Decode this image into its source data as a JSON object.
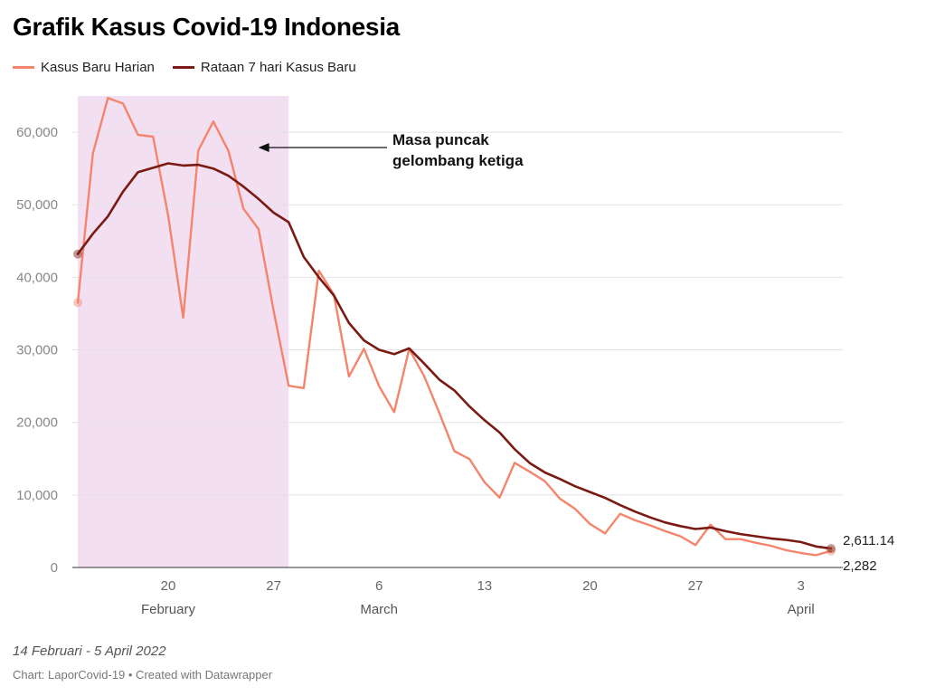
{
  "title": "Grafik Kasus Covid-19 Indonesia",
  "legend": [
    {
      "label": "Kasus Baru Harian",
      "color": "#f4846c"
    },
    {
      "label": "Rataan 7 hari Kasus Baru",
      "color": "#7a1a12"
    }
  ],
  "footer": {
    "note": "14 Februari - 5 April 2022",
    "credit": "Chart: LaporCovid-19 • Created with Datawrapper"
  },
  "chart_data": {
    "type": "line",
    "x_start": "2022-02-14",
    "x_end": "2022-04-05",
    "ylim": [
      0,
      65000
    ],
    "yticks": [
      {
        "value": 0,
        "label": "0"
      },
      {
        "value": 10000,
        "label": "10,000"
      },
      {
        "value": 20000,
        "label": "20,000"
      },
      {
        "value": 30000,
        "label": "30,000"
      },
      {
        "value": 40000,
        "label": "40,000"
      },
      {
        "value": 50000,
        "label": "50,000"
      },
      {
        "value": 60000,
        "label": "60,000"
      }
    ],
    "xticks": [
      {
        "date": "2022-02-20",
        "label": "20",
        "month": "February"
      },
      {
        "date": "2022-02-27",
        "label": "27",
        "month": ""
      },
      {
        "date": "2022-03-06",
        "label": "6",
        "month": "March"
      },
      {
        "date": "2022-03-13",
        "label": "13",
        "month": ""
      },
      {
        "date": "2022-03-20",
        "label": "20",
        "month": ""
      },
      {
        "date": "2022-03-27",
        "label": "27",
        "month": ""
      },
      {
        "date": "2022-04-03",
        "label": "3",
        "month": "April"
      }
    ],
    "highlight": {
      "start": "2022-02-14",
      "end": "2022-02-28",
      "color": "#f2e0f2"
    },
    "annotation": {
      "lines": [
        "Masa puncak",
        "gelombang ketiga"
      ],
      "arrow_to_date": "2022-02-21",
      "value": 58000
    },
    "series": [
      {
        "name": "Kasus Baru Harian",
        "color": "#f4846c",
        "end_label": "2,282",
        "values": [
          36501,
          57049,
          64718,
          63956,
          59635,
          59384,
          48484,
          34418,
          57491,
          61488,
          57426,
          49447,
          46643,
          35384,
          25054,
          24728,
          40918,
          37619,
          26336,
          30156,
          25005,
          21416,
          30148,
          26336,
          21311,
          16036,
          14941,
          11748,
          9629,
          14417,
          13200,
          11900,
          9500,
          8100,
          6000,
          4700,
          7400,
          6500,
          5800,
          5000,
          4300,
          3100,
          5900,
          3900,
          3900,
          3400,
          3000,
          2400,
          2000,
          1700,
          2282
        ]
      },
      {
        "name": "Rataan 7 hari Kasus Baru",
        "color": "#7a1a12",
        "end_label": "2,611.14",
        "values": [
          43200,
          46000,
          48400,
          51800,
          54500,
          55100,
          55700,
          55400,
          55500,
          55000,
          54000,
          52500,
          50800,
          48900,
          47600,
          42800,
          40000,
          37500,
          33700,
          31300,
          30000,
          29400,
          30200,
          28100,
          25900,
          24400,
          22200,
          20300,
          18600,
          16300,
          14400,
          13100,
          12200,
          11200,
          10400,
          9600,
          8600,
          7700,
          6900,
          6200,
          5700,
          5300,
          5500,
          5000,
          4600,
          4300,
          4000,
          3800,
          3500,
          2900,
          2611.14
        ]
      }
    ]
  }
}
